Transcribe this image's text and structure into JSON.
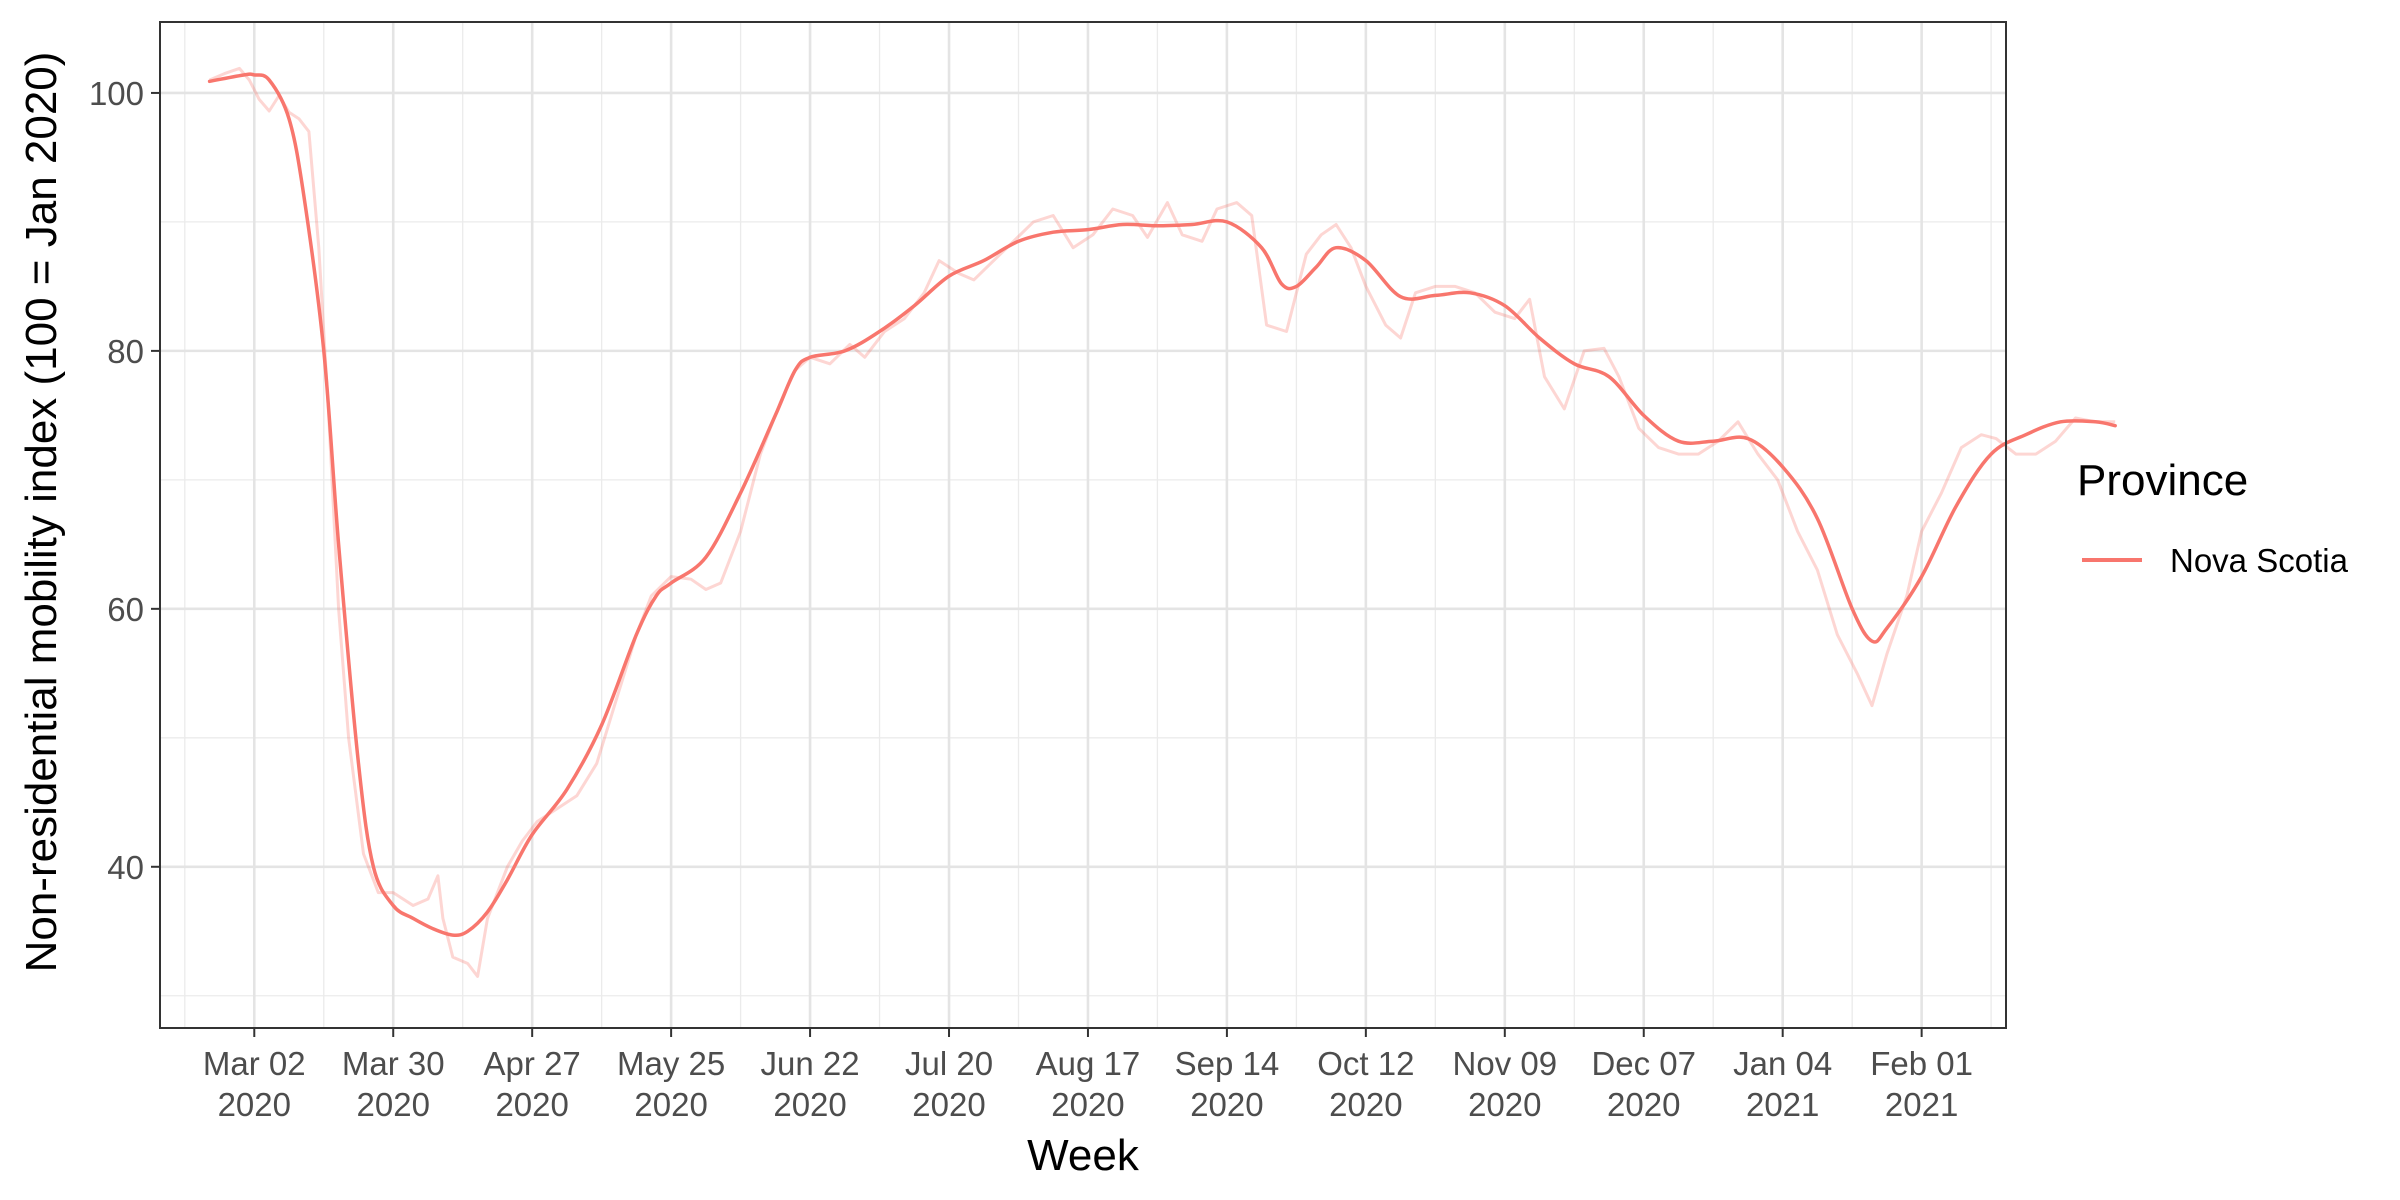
{
  "chart_data": {
    "type": "line",
    "xlabel": "Week",
    "ylabel": "Non-residential mobility index (100 = Jan 2020)",
    "x_ticks": [
      {
        "line1": "Mar 02",
        "line2": "2020",
        "date": "2020-03-02"
      },
      {
        "line1": "Mar 30",
        "line2": "2020",
        "date": "2020-03-30"
      },
      {
        "line1": "Apr 27",
        "line2": "2020",
        "date": "2020-04-27"
      },
      {
        "line1": "May 25",
        "line2": "2020",
        "date": "2020-05-25"
      },
      {
        "line1": "Jun 22",
        "line2": "2020",
        "date": "2020-06-22"
      },
      {
        "line1": "Jul 20",
        "line2": "2020",
        "date": "2020-07-20"
      },
      {
        "line1": "Aug 17",
        "line2": "2020",
        "date": "2020-08-17"
      },
      {
        "line1": "Sep 14",
        "line2": "2020",
        "date": "2020-09-14"
      },
      {
        "line1": "Oct 12",
        "line2": "2020",
        "date": "2020-10-12"
      },
      {
        "line1": "Nov 09",
        "line2": "2020",
        "date": "2020-11-09"
      },
      {
        "line1": "Dec 07",
        "line2": "2020",
        "date": "2020-12-07"
      },
      {
        "line1": "Jan 04",
        "line2": "2021",
        "date": "2021-01-04"
      },
      {
        "line1": "Feb 01",
        "line2": "2021",
        "date": "2021-02-01"
      }
    ],
    "y_ticks": [
      40,
      60,
      80,
      100
    ],
    "xlim": [
      "2020-02-12",
      "2021-02-18"
    ],
    "ylim": [
      27.5,
      105.5
    ],
    "grid": true,
    "legend": {
      "title": "Province",
      "position": "right"
    },
    "series": [
      {
        "name": "Nova Scotia",
        "color": "#F8766D",
        "smoothed": [
          [
            "2020-02-22",
            100.9
          ],
          [
            "2020-02-29",
            101.4
          ],
          [
            "2020-03-02",
            101.4
          ],
          [
            "2020-03-05",
            101.0
          ],
          [
            "2020-03-09",
            98.0
          ],
          [
            "2020-03-12",
            92.0
          ],
          [
            "2020-03-16",
            80.0
          ],
          [
            "2020-03-19",
            65.0
          ],
          [
            "2020-03-23",
            48.0
          ],
          [
            "2020-03-26",
            40.0
          ],
          [
            "2020-03-30",
            37.0
          ],
          [
            "2020-04-03",
            36.0
          ],
          [
            "2020-04-07",
            35.2
          ],
          [
            "2020-04-11",
            34.7
          ],
          [
            "2020-04-14",
            35.0
          ],
          [
            "2020-04-18",
            36.5
          ],
          [
            "2020-04-22",
            39.0
          ],
          [
            "2020-04-27",
            42.5
          ],
          [
            "2020-05-04",
            46.0
          ],
          [
            "2020-05-11",
            51.0
          ],
          [
            "2020-05-18",
            58.0
          ],
          [
            "2020-05-22",
            61.0
          ],
          [
            "2020-05-25",
            62.0
          ],
          [
            "2020-06-01",
            64.0
          ],
          [
            "2020-06-08",
            69.0
          ],
          [
            "2020-06-15",
            75.0
          ],
          [
            "2020-06-19",
            78.5
          ],
          [
            "2020-06-22",
            79.5
          ],
          [
            "2020-06-29",
            80.0
          ],
          [
            "2020-07-06",
            81.5
          ],
          [
            "2020-07-13",
            83.5
          ],
          [
            "2020-07-20",
            85.8
          ],
          [
            "2020-07-27",
            87.0
          ],
          [
            "2020-08-03",
            88.5
          ],
          [
            "2020-08-10",
            89.2
          ],
          [
            "2020-08-17",
            89.4
          ],
          [
            "2020-08-24",
            89.8
          ],
          [
            "2020-08-31",
            89.7
          ],
          [
            "2020-09-07",
            89.8
          ],
          [
            "2020-09-14",
            90.0
          ],
          [
            "2020-09-21",
            88.0
          ],
          [
            "2020-09-25",
            85.2
          ],
          [
            "2020-09-28",
            85.0
          ],
          [
            "2020-10-02",
            86.5
          ],
          [
            "2020-10-06",
            88.0
          ],
          [
            "2020-10-12",
            87.0
          ],
          [
            "2020-10-19",
            84.2
          ],
          [
            "2020-10-26",
            84.3
          ],
          [
            "2020-11-02",
            84.5
          ],
          [
            "2020-11-09",
            83.5
          ],
          [
            "2020-11-16",
            81.0
          ],
          [
            "2020-11-23",
            79.0
          ],
          [
            "2020-11-30",
            78.0
          ],
          [
            "2020-12-07",
            75.0
          ],
          [
            "2020-12-14",
            73.0
          ],
          [
            "2020-12-21",
            73.0
          ],
          [
            "2020-12-28",
            73.2
          ],
          [
            "2021-01-04",
            71.0
          ],
          [
            "2021-01-11",
            67.0
          ],
          [
            "2021-01-18",
            60.0
          ],
          [
            "2021-01-22",
            57.5
          ],
          [
            "2021-01-25",
            58.5
          ],
          [
            "2021-02-01",
            62.5
          ],
          [
            "2021-02-08",
            68.0
          ],
          [
            "2021-02-15",
            72.0
          ],
          [
            "2021-02-22",
            73.5
          ],
          [
            "2021-03-01",
            74.5
          ],
          [
            "2021-03-08",
            74.5
          ],
          [
            "2021-03-12",
            74.2
          ]
        ],
        "raw": [
          [
            "2020-02-22",
            101.0
          ],
          [
            "2020-02-25",
            101.5
          ],
          [
            "2020-02-28",
            101.9
          ],
          [
            "2020-03-01",
            101.0
          ],
          [
            "2020-03-03",
            99.5
          ],
          [
            "2020-03-05",
            98.6
          ],
          [
            "2020-03-07",
            99.8
          ],
          [
            "2020-03-09",
            98.5
          ],
          [
            "2020-03-11",
            98.0
          ],
          [
            "2020-03-13",
            97.0
          ],
          [
            "2020-03-15",
            88.0
          ],
          [
            "2020-03-17",
            75.0
          ],
          [
            "2020-03-19",
            60.0
          ],
          [
            "2020-03-21",
            50.0
          ],
          [
            "2020-03-24",
            41.0
          ],
          [
            "2020-03-27",
            38.0
          ],
          [
            "2020-03-30",
            38.0
          ],
          [
            "2020-04-03",
            37.0
          ],
          [
            "2020-04-06",
            37.5
          ],
          [
            "2020-04-08",
            39.3
          ],
          [
            "2020-04-09",
            36.0
          ],
          [
            "2020-04-11",
            33.0
          ],
          [
            "2020-04-14",
            32.5
          ],
          [
            "2020-04-16",
            31.5
          ],
          [
            "2020-04-18",
            36.0
          ],
          [
            "2020-04-22",
            40.0
          ],
          [
            "2020-04-25",
            42.0
          ],
          [
            "2020-04-28",
            43.5
          ],
          [
            "2020-05-02",
            44.5
          ],
          [
            "2020-05-06",
            45.5
          ],
          [
            "2020-05-10",
            48.0
          ],
          [
            "2020-05-14",
            53.0
          ],
          [
            "2020-05-18",
            58.0
          ],
          [
            "2020-05-21",
            61.0
          ],
          [
            "2020-05-25",
            62.5
          ],
          [
            "2020-05-29",
            62.3
          ],
          [
            "2020-06-01",
            61.5
          ],
          [
            "2020-06-04",
            62.0
          ],
          [
            "2020-06-08",
            66.0
          ],
          [
            "2020-06-12",
            72.0
          ],
          [
            "2020-06-16",
            76.0
          ],
          [
            "2020-06-19",
            78.5
          ],
          [
            "2020-06-22",
            79.5
          ],
          [
            "2020-06-26",
            79.0
          ],
          [
            "2020-06-30",
            80.5
          ],
          [
            "2020-07-03",
            79.5
          ],
          [
            "2020-07-07",
            81.5
          ],
          [
            "2020-07-11",
            82.5
          ],
          [
            "2020-07-15",
            84.5
          ],
          [
            "2020-07-18",
            87.0
          ],
          [
            "2020-07-22",
            86.0
          ],
          [
            "2020-07-25",
            85.5
          ],
          [
            "2020-07-29",
            87.0
          ],
          [
            "2020-08-02",
            88.5
          ],
          [
            "2020-08-06",
            90.0
          ],
          [
            "2020-08-10",
            90.5
          ],
          [
            "2020-08-14",
            88.0
          ],
          [
            "2020-08-18",
            89.0
          ],
          [
            "2020-08-22",
            91.0
          ],
          [
            "2020-08-26",
            90.5
          ],
          [
            "2020-08-29",
            88.8
          ],
          [
            "2020-09-02",
            91.5
          ],
          [
            "2020-09-05",
            89.0
          ],
          [
            "2020-09-09",
            88.5
          ],
          [
            "2020-09-12",
            91.0
          ],
          [
            "2020-09-16",
            91.5
          ],
          [
            "2020-09-19",
            90.5
          ],
          [
            "2020-09-22",
            82.0
          ],
          [
            "2020-09-26",
            81.5
          ],
          [
            "2020-09-30",
            87.5
          ],
          [
            "2020-10-03",
            89.0
          ],
          [
            "2020-10-06",
            89.8
          ],
          [
            "2020-10-09",
            88.0
          ],
          [
            "2020-10-12",
            85.0
          ],
          [
            "2020-10-16",
            82.0
          ],
          [
            "2020-10-19",
            81.0
          ],
          [
            "2020-10-22",
            84.5
          ],
          [
            "2020-10-26",
            85.0
          ],
          [
            "2020-10-30",
            85.0
          ],
          [
            "2020-11-03",
            84.5
          ],
          [
            "2020-11-07",
            83.0
          ],
          [
            "2020-11-11",
            82.5
          ],
          [
            "2020-11-14",
            84.0
          ],
          [
            "2020-11-17",
            78.0
          ],
          [
            "2020-11-21",
            75.5
          ],
          [
            "2020-11-25",
            80.0
          ],
          [
            "2020-11-29",
            80.2
          ],
          [
            "2020-12-02",
            78.0
          ],
          [
            "2020-12-06",
            74.0
          ],
          [
            "2020-12-10",
            72.5
          ],
          [
            "2020-12-14",
            72.0
          ],
          [
            "2020-12-18",
            72.0
          ],
          [
            "2020-12-22",
            73.0
          ],
          [
            "2020-12-26",
            74.5
          ],
          [
            "2020-12-30",
            72.0
          ],
          [
            "2021-01-03",
            70.0
          ],
          [
            "2021-01-07",
            66.0
          ],
          [
            "2021-01-11",
            63.0
          ],
          [
            "2021-01-15",
            58.0
          ],
          [
            "2021-01-19",
            55.0
          ],
          [
            "2021-01-22",
            52.5
          ],
          [
            "2021-01-25",
            56.5
          ],
          [
            "2021-01-29",
            61.0
          ],
          [
            "2021-02-01",
            66.0
          ],
          [
            "2021-02-05",
            69.0
          ],
          [
            "2021-02-09",
            72.5
          ],
          [
            "2021-02-13",
            73.5
          ],
          [
            "2021-02-16",
            73.2
          ],
          [
            "2021-02-20",
            72.0
          ],
          [
            "2021-02-24",
            72.0
          ],
          [
            "2021-02-28",
            73.0
          ],
          [
            "2021-03-04",
            74.8
          ],
          [
            "2021-03-08",
            74.5
          ],
          [
            "2021-03-12",
            74.5
          ]
        ]
      }
    ]
  }
}
